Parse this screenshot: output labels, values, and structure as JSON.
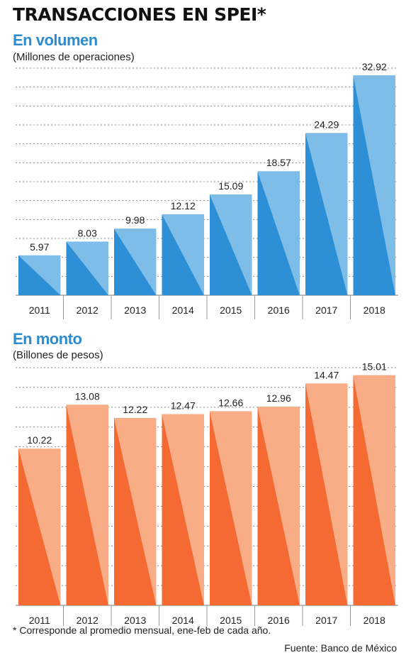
{
  "title": "TRANSACCIONES EN SPEI*",
  "footnote": "* Corresponde al promedio mensual, ene-feb de cada año.",
  "source": "Fuente: Banco de México",
  "colors": {
    "volume_dark": "#2d8fd5",
    "volume_light": "#7dbde8",
    "amount_dark": "#f46a32",
    "amount_light": "#f8ad86",
    "section_title": "#2e8bcc"
  },
  "chart_data": [
    {
      "type": "bar",
      "title": "En volumen",
      "subtitle": "(Millones de operaciones)",
      "categories": [
        "2011",
        "2012",
        "2013",
        "2014",
        "2015",
        "2016",
        "2017",
        "2018"
      ],
      "values": [
        5.97,
        8.03,
        9.98,
        12.12,
        15.09,
        18.57,
        24.29,
        32.92
      ],
      "value_labels": [
        "5.97",
        "8.03",
        "9.98",
        "12.12",
        "15.09",
        "18.57",
        "24.29",
        "32.92"
      ],
      "ylim": [
        0,
        34
      ],
      "grid": true
    },
    {
      "type": "bar",
      "title": "En monto",
      "subtitle": "(Billones de pesos)",
      "categories": [
        "2011",
        "2012",
        "2013",
        "2014",
        "2015",
        "2016",
        "2017",
        "2018"
      ],
      "values": [
        10.22,
        13.08,
        12.22,
        12.47,
        12.66,
        12.96,
        14.47,
        15.01
      ],
      "value_labels": [
        "10.22",
        "13.08",
        "12.22",
        "12.47",
        "12.66",
        "12.96",
        "14.47",
        "15.01"
      ],
      "ylim": [
        0,
        15.5
      ],
      "grid": true
    }
  ]
}
